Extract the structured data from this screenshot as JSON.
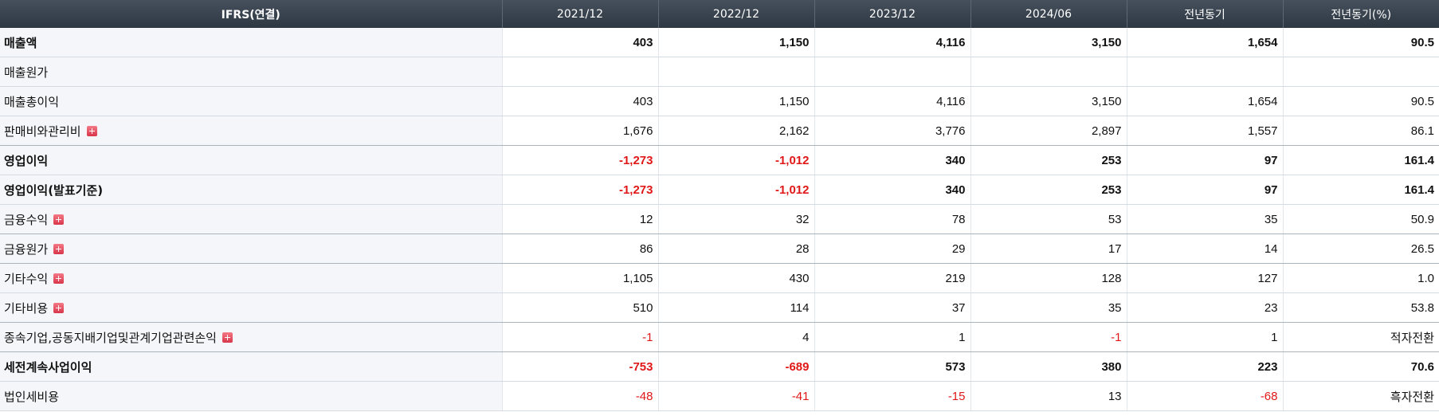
{
  "header": {
    "label": "IFRS(연결)",
    "columns": [
      "2021/12",
      "2022/12",
      "2023/12",
      "2024/06",
      "전년동기",
      "전년동기(%)"
    ]
  },
  "rows": [
    {
      "label": "매출액",
      "bold": true,
      "expand": false,
      "values": [
        "403",
        "1,150",
        "4,116",
        "3,150",
        "1,654",
        "90.5"
      ]
    },
    {
      "label": "매출원가",
      "bold": false,
      "expand": false,
      "values": [
        "",
        "",
        "",
        "",
        "",
        ""
      ]
    },
    {
      "label": "매출총이익",
      "bold": false,
      "expand": false,
      "values": [
        "403",
        "1,150",
        "4,116",
        "3,150",
        "1,654",
        "90.5"
      ]
    },
    {
      "label": "판매비와관리비",
      "bold": false,
      "expand": true,
      "sep": true,
      "values": [
        "1,676",
        "2,162",
        "3,776",
        "2,897",
        "1,557",
        "86.1"
      ]
    },
    {
      "label": "영업이익",
      "bold": true,
      "expand": false,
      "values": [
        "-1,273",
        "-1,012",
        "340",
        "253",
        "97",
        "161.4"
      ]
    },
    {
      "label": "영업이익(발표기준)",
      "bold": true,
      "expand": false,
      "values": [
        "-1,273",
        "-1,012",
        "340",
        "253",
        "97",
        "161.4"
      ]
    },
    {
      "label": "금융수익",
      "bold": false,
      "expand": true,
      "sep": true,
      "values": [
        "12",
        "32",
        "78",
        "53",
        "35",
        "50.9"
      ]
    },
    {
      "label": "금융원가",
      "bold": false,
      "expand": true,
      "sep": true,
      "values": [
        "86",
        "28",
        "29",
        "17",
        "14",
        "26.5"
      ]
    },
    {
      "label": "기타수익",
      "bold": false,
      "expand": true,
      "values": [
        "1,105",
        "430",
        "219",
        "128",
        "127",
        "1.0"
      ]
    },
    {
      "label": "기타비용",
      "bold": false,
      "expand": true,
      "sep": true,
      "values": [
        "510",
        "114",
        "37",
        "35",
        "23",
        "53.8"
      ]
    },
    {
      "label": "종속기업,공동지배기업및관계기업관련손익",
      "bold": false,
      "expand": true,
      "sep": true,
      "values": [
        "-1",
        "4",
        "1",
        "-1",
        "1",
        "적자전환"
      ]
    },
    {
      "label": "세전계속사업이익",
      "bold": true,
      "expand": false,
      "values": [
        "-753",
        "-689",
        "573",
        "380",
        "223",
        "70.6"
      ]
    },
    {
      "label": "법인세비용",
      "bold": false,
      "expand": false,
      "values": [
        "-48",
        "-41",
        "-15",
        "13",
        "-68",
        "흑자전환"
      ]
    }
  ],
  "colors": {
    "negative": "#e01818",
    "header_bg": "#2e3843",
    "expand_icon": "#d8354a"
  }
}
